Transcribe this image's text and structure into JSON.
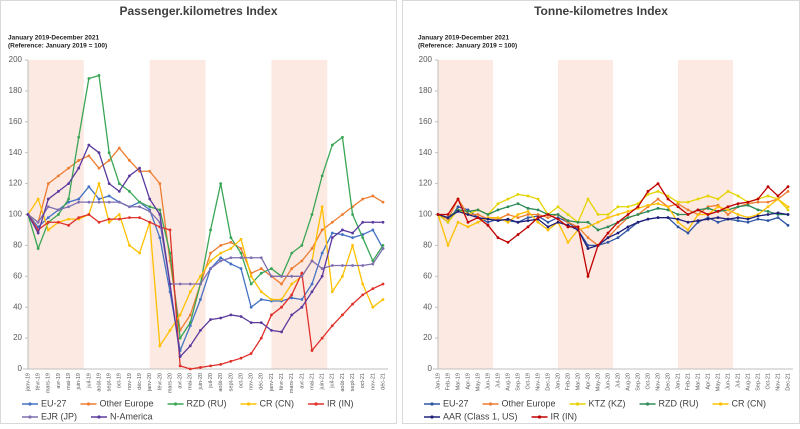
{
  "chart_data": [
    {
      "type": "line",
      "title": "Passenger.kilometres Index",
      "subtitle": [
        "January 2019-December 2021",
        "(Reference: January 2019 = 100)"
      ],
      "categories": [
        "janv-19",
        "févr-19",
        "mars-19",
        "avr-19",
        "mai-19",
        "juin-19",
        "juil-19",
        "août-19",
        "sept-19",
        "oct-19",
        "nov-19",
        "déc-19",
        "janv-20",
        "févr-20",
        "mars-20",
        "avr-20",
        "mai-20",
        "juin-20",
        "juil-20",
        "août-20",
        "sept-20",
        "oct-20",
        "nov-20",
        "déc-20",
        "janv-21",
        "févr-21",
        "mars-21",
        "avr-21",
        "mai-21",
        "juin-21",
        "juil-21",
        "août-21",
        "sept-21",
        "oct-21",
        "nov-21",
        "déc-21"
      ],
      "ylim": [
        0,
        200
      ],
      "yticks": [
        0,
        20,
        40,
        60,
        80,
        100,
        120,
        140,
        160,
        180,
        200
      ],
      "series": [
        {
          "name": "EU-27",
          "color": "#4472c4",
          "values": [
            100,
            92,
            98,
            103,
            108,
            110,
            118,
            110,
            112,
            108,
            105,
            108,
            103,
            85,
            50,
            12,
            28,
            45,
            65,
            72,
            68,
            65,
            40,
            45,
            44,
            44,
            46,
            45,
            55,
            75,
            88,
            87,
            85,
            87,
            90,
            78
          ]
        },
        {
          "name": "Other Europe",
          "color": "#ed7d31",
          "values": [
            100,
            95,
            120,
            125,
            130,
            135,
            138,
            130,
            135,
            143,
            135,
            128,
            128,
            120,
            70,
            25,
            35,
            55,
            75,
            80,
            82,
            78,
            62,
            65,
            60,
            55,
            65,
            70,
            78,
            90,
            95,
            100,
            105,
            110,
            112,
            108
          ]
        },
        {
          "name": "RZD (RU)",
          "color": "#3aa655",
          "values": [
            100,
            78,
            95,
            100,
            110,
            150,
            188,
            190,
            140,
            120,
            115,
            108,
            105,
            103,
            75,
            20,
            30,
            55,
            90,
            120,
            85,
            75,
            55,
            62,
            65,
            60,
            75,
            80,
            100,
            125,
            145,
            150,
            100,
            85,
            70,
            80
          ]
        },
        {
          "name": "CR (CN)",
          "color": "#ffc000",
          "values": [
            100,
            110,
            90,
            95,
            97,
            97,
            100,
            120,
            95,
            100,
            80,
            75,
            95,
            15,
            25,
            35,
            50,
            60,
            70,
            75,
            78,
            84,
            60,
            50,
            45,
            45,
            55,
            60,
            70,
            105,
            50,
            60,
            80,
            55,
            40,
            45
          ]
        },
        {
          "name": "IR (IN)",
          "color": "#e0302a",
          "values": [
            100,
            90,
            95,
            95,
            93,
            98,
            100,
            95,
            97,
            97,
            98,
            98,
            95,
            92,
            90,
            2,
            0,
            1,
            2,
            3,
            5,
            7,
            10,
            20,
            35,
            40,
            48,
            62,
            12,
            20,
            28,
            35,
            42,
            48,
            52,
            55
          ]
        },
        {
          "name": "EJR (JP)",
          "color": "#7f6fb0",
          "values": [
            100,
            95,
            105,
            103,
            105,
            108,
            108,
            108,
            108,
            108,
            105,
            105,
            102,
            95,
            55,
            55,
            55,
            55,
            65,
            70,
            72,
            72,
            72,
            72,
            60,
            60,
            60,
            60,
            70,
            65,
            67,
            67,
            67,
            67,
            68,
            78
          ]
        },
        {
          "name": "N-America",
          "color": "#5b3a9e",
          "values": [
            100,
            88,
            110,
            115,
            120,
            130,
            145,
            140,
            120,
            115,
            125,
            130,
            110,
            100,
            55,
            8,
            15,
            25,
            32,
            33,
            35,
            34,
            30,
            30,
            25,
            24,
            35,
            40,
            50,
            60,
            85,
            90,
            88,
            95,
            95,
            95
          ]
        }
      ]
    },
    {
      "type": "line",
      "title": "Tonne-kilometres Index",
      "subtitle": [
        "January 2019-December 2021",
        "(Reference: January 2019 = 100)"
      ],
      "categories": [
        "Jan-19",
        "Feb-19",
        "Mar-19",
        "Apr-19",
        "May-19",
        "Jun-19",
        "Jul-19",
        "Aug-19",
        "Sep-19",
        "Oct-19",
        "Nov-19",
        "Dec-19",
        "Jan-20",
        "Feb-20",
        "Mar-20",
        "Apr-20",
        "May-20",
        "Jun-20",
        "Jul-20",
        "Aug-20",
        "Sep-20",
        "Oct-20",
        "Nov-20",
        "Dec-20",
        "Jan-21",
        "Feb-21",
        "Mar-21",
        "Apr-21",
        "May-21",
        "Jun-21",
        "Jul-21",
        "Aug-21",
        "Sep-21",
        "Oct-21",
        "Nov-21",
        "Dec-21"
      ],
      "ylim": [
        0,
        200
      ],
      "yticks": [
        0,
        20,
        40,
        60,
        80,
        100,
        120,
        140,
        160,
        180,
        200
      ],
      "series": [
        {
          "name": "EU-27",
          "color": "#2f55a4",
          "values": [
            100,
            95,
            105,
            103,
            98,
            95,
            97,
            96,
            95,
            98,
            99,
            95,
            98,
            95,
            90,
            80,
            80,
            82,
            85,
            90,
            95,
            97,
            98,
            98,
            92,
            88,
            95,
            98,
            95,
            97,
            96,
            95,
            97,
            96,
            98,
            93
          ]
        },
        {
          "name": "Other Europe",
          "color": "#ed7d31",
          "values": [
            100,
            97,
            110,
            100,
            100,
            97,
            97,
            100,
            98,
            100,
            100,
            98,
            100,
            95,
            92,
            85,
            80,
            85,
            92,
            98,
            100,
            105,
            110,
            105,
            107,
            103,
            100,
            105,
            106,
            100,
            105,
            107,
            108,
            108,
            110,
            115
          ]
        },
        {
          "name": "KTZ (KZ)",
          "color": "#e6d400",
          "values": [
            100,
            95,
            103,
            100,
            103,
            100,
            107,
            110,
            113,
            112,
            110,
            100,
            105,
            100,
            95,
            110,
            100,
            100,
            105,
            105,
            107,
            113,
            115,
            112,
            108,
            108,
            110,
            112,
            110,
            115,
            112,
            108,
            110,
            112,
            110,
            103
          ]
        },
        {
          "name": "RZD (RU)",
          "color": "#2e8b57",
          "values": [
            100,
            98,
            103,
            102,
            103,
            100,
            103,
            105,
            107,
            104,
            103,
            100,
            100,
            96,
            95,
            95,
            90,
            92,
            95,
            98,
            100,
            102,
            104,
            103,
            100,
            100,
            103,
            104,
            102,
            103,
            105,
            106,
            103,
            102,
            100,
            100
          ]
        },
        {
          "name": "CR (CN)",
          "color": "#ffc000",
          "values": [
            100,
            80,
            95,
            92,
            95,
            98,
            98,
            95,
            100,
            102,
            95,
            90,
            95,
            82,
            90,
            92,
            95,
            98,
            100,
            102,
            104,
            106,
            107,
            105,
            95,
            90,
            100,
            100,
            105,
            103,
            100,
            98,
            100,
            105,
            110,
            105
          ]
        },
        {
          "name": "AAR (Class 1, US)",
          "color": "#1f1f7a",
          "values": [
            100,
            98,
            102,
            100,
            98,
            97,
            96,
            97,
            95,
            96,
            97,
            92,
            95,
            93,
            90,
            78,
            80,
            85,
            88,
            92,
            95,
            97,
            98,
            98,
            97,
            95,
            96,
            97,
            98,
            97,
            98,
            97,
            99,
            100,
            101,
            100
          ]
        },
        {
          "name": "IR (IN)",
          "color": "#c00000",
          "values": [
            100,
            100,
            110,
            95,
            98,
            93,
            85,
            82,
            87,
            92,
            98,
            100,
            97,
            92,
            92,
            60,
            80,
            88,
            95,
            100,
            105,
            115,
            120,
            110,
            105,
            100,
            103,
            100,
            102,
            105,
            107,
            108,
            110,
            118,
            112,
            118
          ]
        }
      ]
    }
  ]
}
